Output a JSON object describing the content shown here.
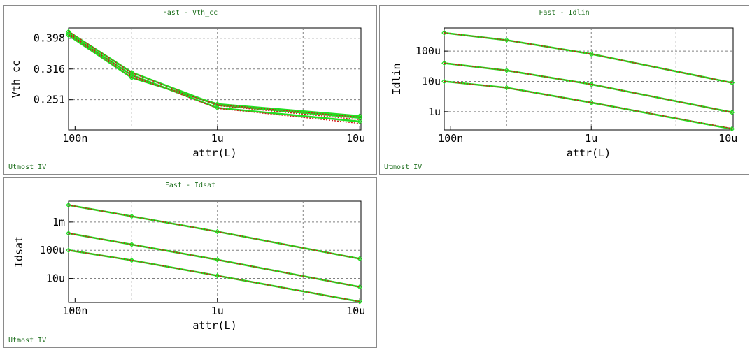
{
  "window": {
    "footer_text": "Utmost IV"
  },
  "colors": {
    "measured": "#22e022",
    "simulated": "#d01818",
    "grid": "#808080",
    "title": "#1d6e1d"
  },
  "chart_data": [
    {
      "id": "vth",
      "type": "line",
      "title": "Fast - Vth_cc",
      "xlabel": "attr(L)",
      "ylabel": "Vth_cc",
      "x_scale": "log",
      "y_scale": "log",
      "xlim": [
        9e-08,
        1.02e-05
      ],
      "ylim": [
        0.2,
        0.43
      ],
      "x_ticks": [
        {
          "v": 1e-07,
          "label": "100n"
        },
        {
          "v": 1e-06,
          "label": "1u"
        },
        {
          "v": 1e-05,
          "label": "10u"
        }
      ],
      "y_ticks": [
        {
          "v": 0.398,
          "label": "0.398"
        },
        {
          "v": 0.316,
          "label": "0.316"
        },
        {
          "v": 0.251,
          "label": "0.251"
        }
      ],
      "x_grid": [
        2.5e-07,
        1e-06,
        4e-06
      ],
      "y_grid": [
        0.398,
        0.316,
        0.251
      ],
      "series": [
        {
          "kind": "measured",
          "x": [
            9e-08,
            2.5e-07,
            1e-06,
            1e-05
          ],
          "y": [
            0.412,
            0.302,
            0.236,
            0.213
          ]
        },
        {
          "kind": "simulated",
          "x": [
            9e-08,
            2.5e-07,
            1e-06,
            1e-05
          ],
          "y": [
            0.413,
            0.301,
            0.235,
            0.21
          ]
        },
        {
          "kind": "measured",
          "x": [
            9e-08,
            2.5e-07,
            1e-06,
            1e-05
          ],
          "y": [
            0.418,
            0.308,
            0.241,
            0.219
          ]
        },
        {
          "kind": "simulated",
          "x": [
            9e-08,
            2.5e-07,
            1e-06,
            1e-05
          ],
          "y": [
            0.419,
            0.307,
            0.24,
            0.216
          ]
        },
        {
          "kind": "measured",
          "x": [
            9e-08,
            2.5e-07,
            1e-06,
            1e-05
          ],
          "y": [
            0.407,
            0.296,
            0.243,
            0.222
          ]
        },
        {
          "kind": "simulated",
          "x": [
            9e-08,
            2.5e-07,
            1e-06,
            1e-05
          ],
          "y": [
            0.409,
            0.297,
            0.242,
            0.22
          ]
        }
      ]
    },
    {
      "id": "idlin",
      "type": "line",
      "title": "Fast - Idlin",
      "xlabel": "attr(L)",
      "ylabel": "Idlin",
      "x_scale": "log",
      "y_scale": "log",
      "xlim": [
        9e-08,
        1.02e-05
      ],
      "ylim": [
        2.5e-07,
        0.00058
      ],
      "x_ticks": [
        {
          "v": 1e-07,
          "label": "100n"
        },
        {
          "v": 1e-06,
          "label": "1u"
        },
        {
          "v": 1e-05,
          "label": "10u"
        }
      ],
      "y_ticks": [
        {
          "v": 0.0001,
          "label": "100u"
        },
        {
          "v": 1e-05,
          "label": "10u"
        },
        {
          "v": 1e-06,
          "label": "1u"
        }
      ],
      "x_grid": [
        2.5e-07,
        1e-06,
        4e-06
      ],
      "y_grid": [
        0.0001,
        1e-05,
        1e-06
      ],
      "series": [
        {
          "kind": "measured",
          "x": [
            9e-08,
            2.5e-07,
            1e-06,
            1e-05
          ],
          "y": [
            0.0004,
            0.00023,
            8e-05,
            9e-06
          ]
        },
        {
          "kind": "simulated",
          "x": [
            9e-08,
            2.5e-07,
            1e-06,
            1e-05
          ],
          "y": [
            0.0004,
            0.00023,
            8e-05,
            9e-06
          ]
        },
        {
          "kind": "measured",
          "x": [
            9e-08,
            2.5e-07,
            1e-06,
            1e-05
          ],
          "y": [
            4e-05,
            2.3e-05,
            8e-06,
            9.5e-07
          ]
        },
        {
          "kind": "simulated",
          "x": [
            9e-08,
            2.5e-07,
            1e-06,
            1e-05
          ],
          "y": [
            4e-05,
            2.3e-05,
            8e-06,
            9.5e-07
          ]
        },
        {
          "kind": "measured",
          "x": [
            9e-08,
            2.5e-07,
            1e-06,
            1e-05
          ],
          "y": [
            1e-05,
            6.2e-06,
            2e-06,
            2.7e-07
          ]
        },
        {
          "kind": "simulated",
          "x": [
            9e-08,
            2.5e-07,
            1e-06,
            1e-05
          ],
          "y": [
            1e-05,
            6.1e-06,
            2e-06,
            2.8e-07
          ]
        }
      ]
    },
    {
      "id": "idsat",
      "type": "line",
      "title": "Fast - Idsat",
      "xlabel": "attr(L)",
      "ylabel": "Idsat",
      "x_scale": "log",
      "y_scale": "log",
      "xlim": [
        9e-08,
        1.02e-05
      ],
      "ylim": [
        1.4e-06,
        0.0055
      ],
      "x_ticks": [
        {
          "v": 1e-07,
          "label": "100n"
        },
        {
          "v": 1e-06,
          "label": "1u"
        },
        {
          "v": 1e-05,
          "label": "10u"
        }
      ],
      "y_ticks": [
        {
          "v": 0.001,
          "label": "1m"
        },
        {
          "v": 0.0001,
          "label": "100u"
        },
        {
          "v": 1e-05,
          "label": "10u"
        }
      ],
      "x_grid": [
        2.5e-07,
        1e-06,
        4e-06
      ],
      "y_grid": [
        0.001,
        0.0001,
        1e-05
      ],
      "series": [
        {
          "kind": "measured",
          "x": [
            9e-08,
            2.5e-07,
            1e-06,
            1e-05
          ],
          "y": [
            0.004,
            0.0016,
            0.00046,
            5e-05
          ]
        },
        {
          "kind": "simulated",
          "x": [
            9e-08,
            2.5e-07,
            1e-06,
            1e-05
          ],
          "y": [
            0.004,
            0.0016,
            0.00046,
            5e-05
          ]
        },
        {
          "kind": "measured",
          "x": [
            9e-08,
            2.5e-07,
            1e-06,
            1e-05
          ],
          "y": [
            0.0004,
            0.00016,
            4.6e-05,
            5e-06
          ]
        },
        {
          "kind": "simulated",
          "x": [
            9e-08,
            2.5e-07,
            1e-06,
            1e-05
          ],
          "y": [
            0.0004,
            0.00016,
            4.6e-05,
            5e-06
          ]
        },
        {
          "kind": "measured",
          "x": [
            9e-08,
            2.5e-07,
            1e-06,
            1e-05
          ],
          "y": [
            0.0001,
            4.4e-05,
            1.25e-05,
            1.5e-06
          ]
        },
        {
          "kind": "simulated",
          "x": [
            9e-08,
            2.5e-07,
            1e-06,
            1e-05
          ],
          "y": [
            0.0001,
            4.4e-05,
            1.25e-05,
            1.5e-06
          ]
        }
      ]
    }
  ]
}
